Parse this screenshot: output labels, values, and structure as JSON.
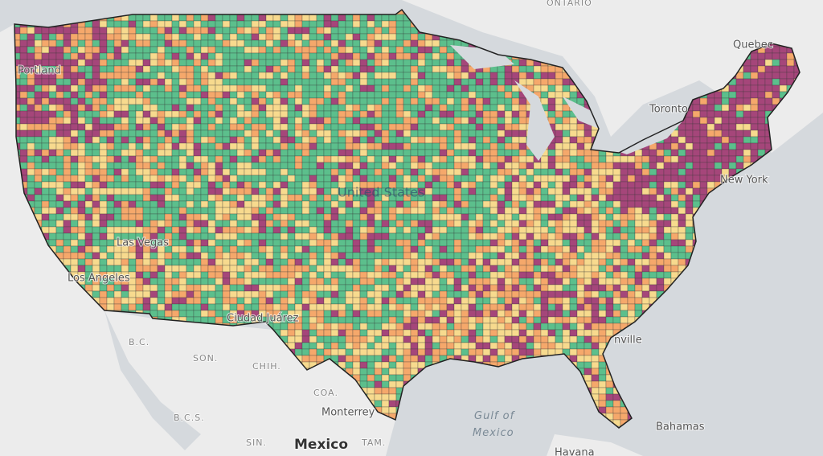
{
  "map": {
    "labels": [
      "ONTARIO",
      "Quebec",
      "Toronto",
      "New York",
      "United States",
      "Las Vegas",
      "Los Angeles",
      "Ciudad Juárez",
      "B.C.",
      "SON.",
      "CHIH.",
      "COA.",
      "Monterrey",
      "B.C.S.",
      "SIN.",
      "TAM.",
      "Mexico",
      "Gulf of",
      "Mexico",
      "Havana",
      "Bahamas",
      "nville",
      "Portland"
    ]
  }
}
